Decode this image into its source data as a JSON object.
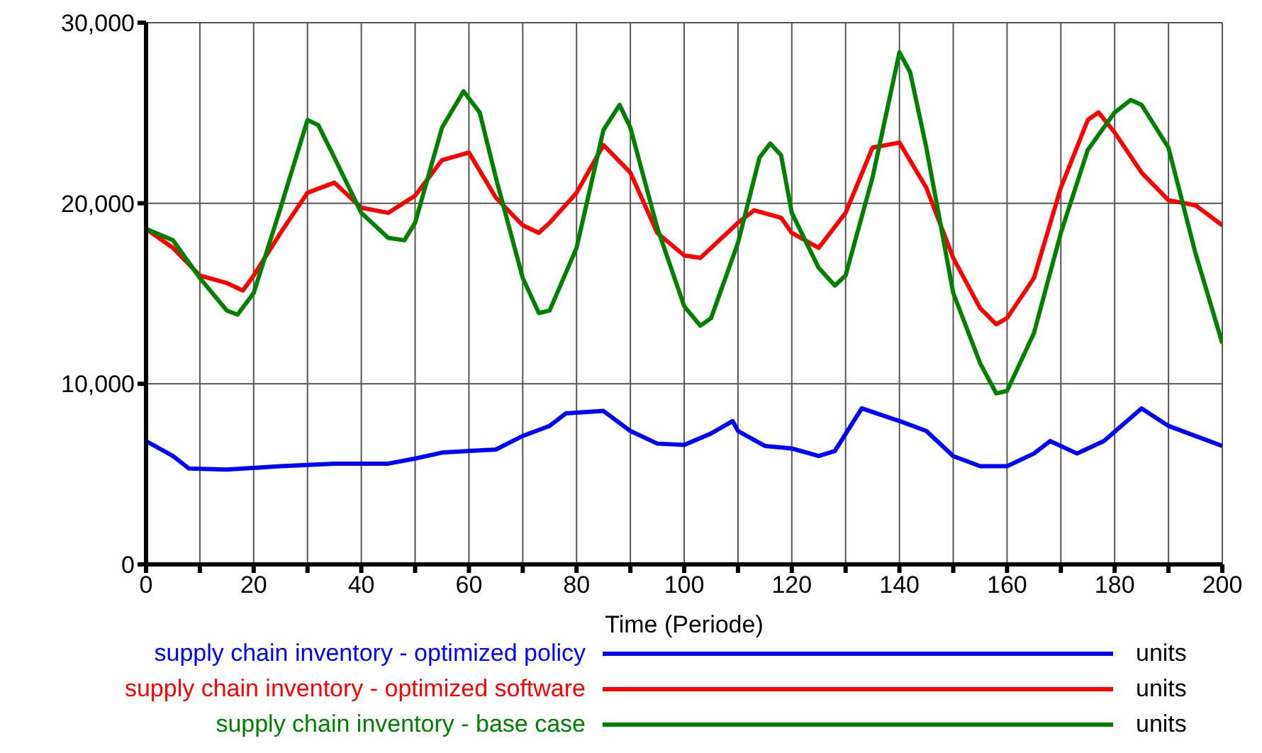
{
  "chart_data": {
    "type": "line",
    "xlabel": "Time (Periode)",
    "xlim": [
      0,
      200
    ],
    "ylim": [
      0,
      30000
    ],
    "xticks": [
      0,
      {
        "value": 10,
        "label": null
      },
      20,
      {
        "value": 30,
        "label": null
      },
      40,
      {
        "value": 50,
        "label": null
      },
      60,
      {
        "value": 70,
        "label": null
      },
      80,
      {
        "value": 90,
        "label": null
      },
      100,
      {
        "value": 110,
        "label": null
      },
      120,
      {
        "value": 130,
        "label": null
      },
      140,
      {
        "value": 150,
        "label": null
      },
      160,
      {
        "value": 170,
        "label": null
      },
      180,
      {
        "value": 190,
        "label": null
      },
      200
    ],
    "yticks": [
      0,
      {
        "value": 10000,
        "label": "10,000"
      },
      {
        "value": 20000,
        "label": "20,000"
      },
      {
        "value": 30000,
        "label": "30,000"
      }
    ],
    "grid": true,
    "legend": "bottom",
    "annotations": [
      "units",
      "units",
      "units"
    ],
    "series": [
      {
        "name": "supply chain inventory - optimized policy",
        "color": "#0000ff",
        "x": [
          0,
          5,
          8,
          15,
          25,
          35,
          45,
          50,
          55,
          60,
          65,
          70,
          75,
          78,
          85,
          90,
          95,
          100,
          105,
          109,
          110,
          115,
          120,
          125,
          128,
          133,
          140,
          145,
          150,
          155,
          160,
          165,
          168,
          173,
          178,
          185,
          190,
          195,
          200
        ],
        "values": [
          6830,
          6000,
          5310,
          5250,
          5440,
          5580,
          5580,
          5860,
          6190,
          6280,
          6360,
          7110,
          7670,
          8360,
          8500,
          7390,
          6690,
          6620,
          7250,
          7940,
          7390,
          6560,
          6420,
          6000,
          6280,
          8640,
          7940,
          7390,
          6000,
          5440,
          5440,
          6140,
          6830,
          6140,
          6830,
          8640,
          7670,
          7110,
          6560
        ]
      },
      {
        "name": "supply chain inventory - optimized software",
        "color": "#ff0000",
        "x": [
          0,
          5,
          10,
          15,
          18,
          20,
          25,
          30,
          35,
          40,
          45,
          50,
          55,
          60,
          65,
          70,
          73,
          75,
          80,
          85,
          90,
          95,
          100,
          103,
          108,
          110,
          113,
          118,
          120,
          125,
          130,
          135,
          140,
          145,
          150,
          155,
          158,
          160,
          165,
          170,
          175,
          177,
          180,
          185,
          190,
          195,
          200
        ],
        "values": [
          18580,
          17530,
          16000,
          15580,
          15170,
          16000,
          18360,
          20580,
          21140,
          19750,
          19470,
          20420,
          22390,
          22810,
          20310,
          18780,
          18360,
          18920,
          20580,
          23220,
          21700,
          18360,
          17110,
          16970,
          18360,
          18920,
          19610,
          19200,
          18360,
          17530,
          19470,
          23080,
          23360,
          20860,
          16970,
          14190,
          13300,
          13640,
          15860,
          20860,
          24610,
          25030,
          23920,
          21700,
          20170,
          19890,
          18780
        ]
      },
      {
        "name": "supply chain inventory - base case",
        "color": "#008000",
        "x": [
          0,
          5,
          10,
          15,
          17,
          20,
          25,
          30,
          32,
          35,
          40,
          45,
          48,
          50,
          55,
          59,
          62,
          65,
          70,
          73,
          75,
          80,
          85,
          88,
          90,
          95,
          100,
          103,
          105,
          110,
          114,
          116,
          118,
          120,
          125,
          128,
          130,
          135,
          140,
          142,
          145,
          150,
          155,
          158,
          160,
          165,
          170,
          175,
          180,
          183,
          185,
          190,
          195,
          200
        ],
        "values": [
          18580,
          17950,
          15860,
          14060,
          13830,
          15030,
          19750,
          24610,
          24330,
          22530,
          19470,
          18080,
          17950,
          18920,
          24190,
          26200,
          25030,
          21420,
          15860,
          13920,
          14060,
          17530,
          24060,
          25450,
          24190,
          18640,
          14300,
          13220,
          13640,
          17810,
          22530,
          23310,
          22670,
          19470,
          16420,
          15440,
          16000,
          21420,
          28360,
          27250,
          23080,
          15030,
          11140,
          9470,
          9610,
          12810,
          18360,
          22950,
          25030,
          25720,
          25450,
          23080,
          17250,
          12250
        ]
      }
    ]
  }
}
